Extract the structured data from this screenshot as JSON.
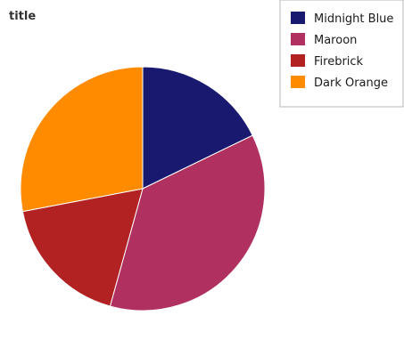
{
  "chart_data": {
    "type": "pie",
    "title": "title",
    "categories": [
      "Midnight Blue",
      "Maroon",
      "Firebrick",
      "Dark Orange"
    ],
    "values": [
      17.8,
      36.5,
      17.7,
      28.0
    ],
    "colors": [
      "#191970",
      "#b03060",
      "#b22222",
      "#ff8c00"
    ],
    "start_angle_deg": 0,
    "direction": "clockwise",
    "legend_position": "top-right"
  }
}
